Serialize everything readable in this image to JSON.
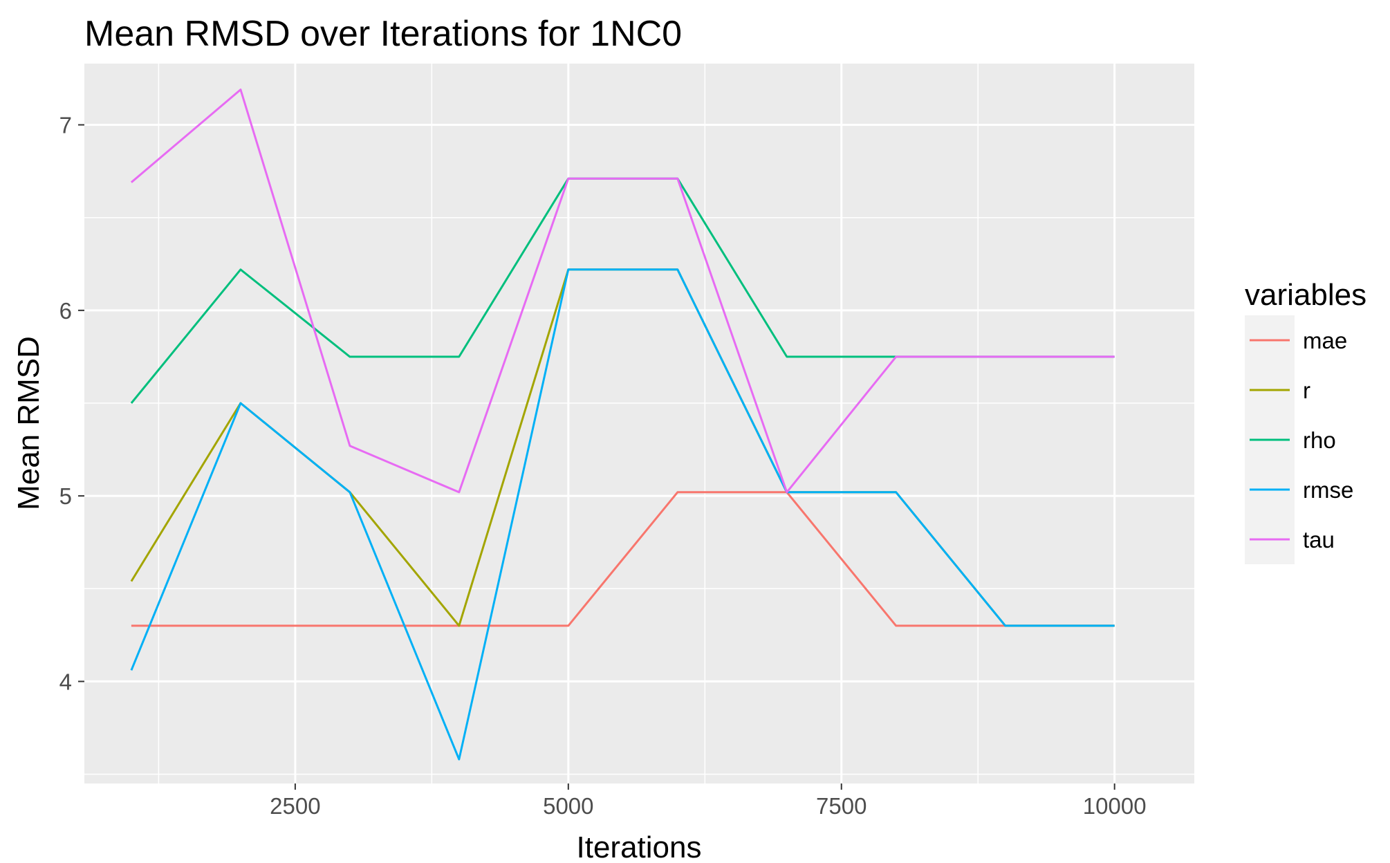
{
  "chart_data": {
    "type": "line",
    "title": "Mean RMSD over Iterations for 1NC0",
    "xlabel": "Iterations",
    "ylabel": "Mean RMSD",
    "xlim": [
      570,
      10730
    ],
    "ylim": [
      3.45,
      7.33
    ],
    "x_ticks": [
      2500,
      5000,
      7500,
      10000
    ],
    "x_minor": [
      1250,
      3750,
      6250,
      8750
    ],
    "y_ticks": [
      4,
      5,
      6,
      7
    ],
    "y_minor": [
      3.5,
      4.5,
      5.5,
      6.5
    ],
    "x": [
      1000,
      2000,
      3000,
      4000,
      5000,
      6000,
      7000,
      8000,
      9000,
      10000
    ],
    "legend_title": "variables",
    "legend_position": "right",
    "grid": true,
    "panel_background": "#ebebeb",
    "series": [
      {
        "name": "mae",
        "color": "#f8766d",
        "values": [
          4.3,
          4.3,
          4.3,
          4.3,
          4.3,
          5.02,
          5.02,
          4.3,
          4.3,
          4.3
        ]
      },
      {
        "name": "r",
        "color": "#a3a500",
        "values": [
          4.54,
          5.5,
          5.02,
          4.3,
          6.22,
          6.22,
          5.02,
          5.02,
          4.3,
          4.3
        ]
      },
      {
        "name": "rho",
        "color": "#00bf7d",
        "values": [
          5.5,
          6.22,
          5.75,
          5.75,
          6.71,
          6.71,
          5.75,
          5.75,
          5.75,
          5.75
        ]
      },
      {
        "name": "rmse",
        "color": "#00b0f6",
        "values": [
          4.06,
          5.5,
          5.02,
          3.58,
          6.22,
          6.22,
          5.02,
          5.02,
          4.3,
          4.3
        ]
      },
      {
        "name": "tau",
        "color": "#e76bf3",
        "values": [
          6.69,
          7.19,
          5.27,
          5.02,
          6.71,
          6.71,
          5.02,
          5.75,
          5.75,
          5.75
        ]
      }
    ]
  }
}
